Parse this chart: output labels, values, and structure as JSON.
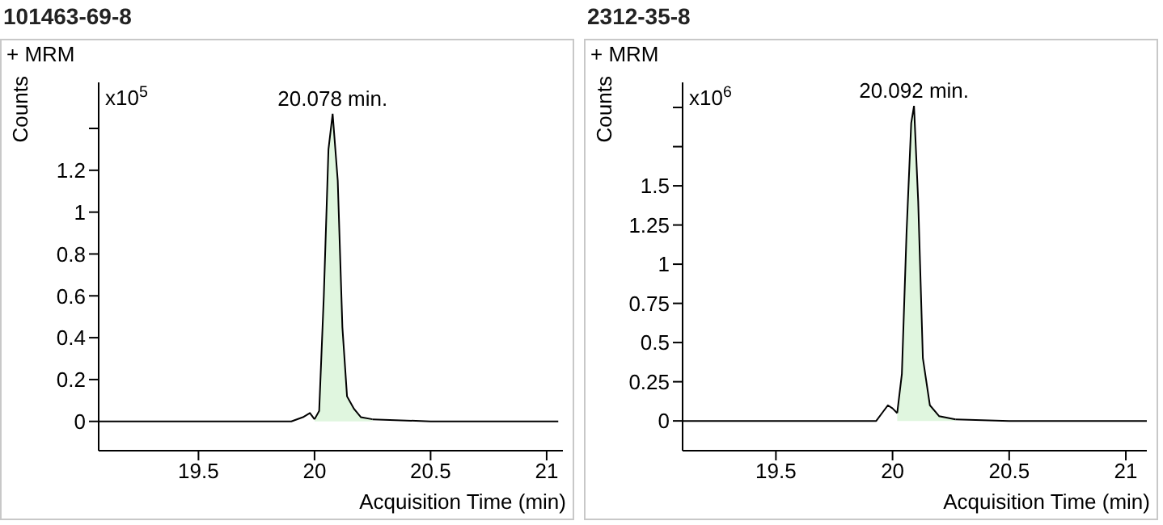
{
  "chart_data": [
    {
      "type": "line",
      "title": "101463-69-8",
      "xlabel": "Acquisition Time (min)",
      "ylabel": "Counts",
      "annotations": [
        "+ MRM",
        "x10$^{5}$",
        {
          "text": "20.078 min.",
          "x": 20.078,
          "y": 1.47
        }
      ],
      "xlim": [
        19.07,
        21.07
      ],
      "xticks": [
        19.5,
        20,
        20.5,
        21
      ],
      "ylim": [
        -0.14,
        1.62
      ],
      "yticks": [
        0,
        0.2,
        0.4,
        0.6,
        0.8,
        1,
        1.2,
        {
          "value": 1.4,
          "label": null
        }
      ],
      "grid": false,
      "series": [
        {
          "color": "#000000",
          "x": [
            19.07,
            19.9,
            19.95,
            19.98,
            20.0,
            20.1,
            20.25,
            20.5,
            21.05
          ],
          "values": [
            0,
            0,
            0.02,
            0.04,
            0.01,
            null,
            0.01,
            0,
            0
          ]
        },
        {
          "type": "area",
          "color": "#e0f6df",
          "x": [
            20.0,
            20.02,
            20.04,
            20.06,
            20.078,
            20.1,
            20.12,
            20.14,
            20.17,
            20.2,
            20.25
          ],
          "values": [
            0.01,
            0.05,
            0.6,
            1.3,
            1.47,
            1.15,
            0.45,
            0.12,
            0.06,
            0.02,
            0.01
          ]
        }
      ]
    },
    {
      "type": "line",
      "title": "2312-35-8",
      "xlabel": "Acquisition Time (min)",
      "ylabel": "Counts",
      "annotations": [
        "+ MRM",
        "x10$^{6}$",
        {
          "text": "20.092 min.",
          "x": 20.092,
          "y": 2.01
        }
      ],
      "xlim": [
        19.1,
        21.09
      ],
      "xticks": [
        19.5,
        20,
        20.5,
        21
      ],
      "ylim": [
        -0.19,
        2.16
      ],
      "yticks": [
        0,
        0.25,
        0.5,
        0.75,
        1,
        1.25,
        1.5,
        {
          "value": 1.75,
          "label": null
        },
        {
          "value": 2,
          "label": null
        }
      ],
      "grid": false,
      "series": [
        {
          "color": "#000000",
          "x": [
            19.1,
            19.93,
            19.96,
            19.98,
            20.0,
            20.02,
            20.1,
            20.27,
            20.5,
            21.09
          ],
          "values": [
            0,
            0,
            0.06,
            0.1,
            0.08,
            0.05,
            null,
            0.01,
            0,
            0
          ]
        },
        {
          "type": "area",
          "color": "#e0f6df",
          "x": [
            20.02,
            20.04,
            20.06,
            20.08,
            20.092,
            20.11,
            20.13,
            20.16,
            20.2,
            20.27
          ],
          "values": [
            0.05,
            0.3,
            1.2,
            1.9,
            2.01,
            1.4,
            0.4,
            0.1,
            0.03,
            0.01
          ]
        }
      ]
    }
  ]
}
